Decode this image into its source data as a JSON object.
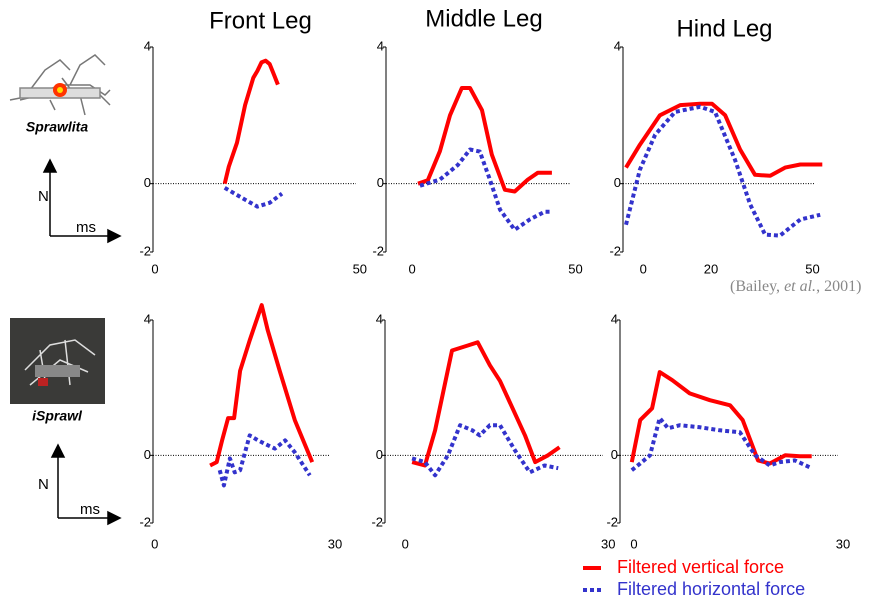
{
  "chart_data": [
    {
      "type": "line",
      "title": "Front Leg",
      "xlim": [
        -0.5,
        52
      ],
      "ylim": [
        -2,
        4
      ],
      "xticks": [
        0,
        50
      ],
      "yticks": [
        4,
        0,
        -2
      ],
      "hline": 0,
      "series": [
        {
          "name": "Filtered vertical force",
          "color": "#ff0000",
          "style": "solid",
          "x": [
            17,
            18,
            20,
            22,
            24,
            25,
            26,
            27,
            28,
            29,
            30
          ],
          "values": [
            0,
            0.5,
            1.2,
            2.3,
            3.1,
            3.3,
            3.55,
            3.6,
            3.5,
            3.2,
            2.9
          ]
        },
        {
          "name": "Filtered horizontal force",
          "color": "#3333cc",
          "style": "dotted",
          "x": [
            17,
            22,
            25,
            28,
            31
          ],
          "values": [
            -0.12,
            -0.47,
            -0.67,
            -0.56,
            -0.29
          ]
        }
      ]
    },
    {
      "type": "line",
      "title": "Middle Leg",
      "xlim": [
        -8,
        52
      ],
      "ylim": [
        -2,
        4
      ],
      "xticks": [
        0,
        50
      ],
      "yticks": [
        4,
        0,
        -2
      ],
      "hline": 0,
      "series": [
        {
          "name": "Filtered vertical force",
          "color": "#ff0000",
          "style": "solid",
          "x": [
            1.8,
            4.8,
            8.5,
            11.6,
            15.2,
            17.7,
            21.4,
            24.4,
            28.4,
            31.4,
            35.4,
            38.5,
            42.8
          ],
          "values": [
            0,
            0.1,
            0.95,
            2.0,
            2.8,
            2.8,
            2.15,
            0.85,
            -0.18,
            -0.23,
            0.12,
            0.32,
            0.32
          ]
        },
        {
          "name": "Filtered horizontal force",
          "color": "#3333cc",
          "style": "dotted",
          "x": [
            2.4,
            8.5,
            14,
            17.7,
            20.7,
            23.8,
            26.9,
            31.4,
            36,
            40.6,
            42.5
          ],
          "values": [
            -0.06,
            0.12,
            0.55,
            1.0,
            0.94,
            0.12,
            -0.76,
            -1.35,
            -1.05,
            -0.82,
            -0.82
          ]
        }
      ]
    },
    {
      "type": "line",
      "title": "Hind Leg",
      "xlim": [
        -6,
        54
      ],
      "ylim": [
        -2,
        4
      ],
      "xticks": [
        0,
        20,
        50
      ],
      "yticks": [
        4,
        0,
        -2
      ],
      "hline": 0,
      "series": [
        {
          "name": "Filtered vertical force",
          "color": "#ff0000",
          "style": "solid",
          "x": [
            -5.1,
            -1,
            4.9,
            10.9,
            16.8,
            20.3,
            24.2,
            28.6,
            33,
            37.5,
            41.9,
            46.4,
            52.9
          ],
          "values": [
            0.47,
            1.14,
            2.0,
            2.3,
            2.34,
            2.34,
            2.0,
            1.0,
            0.26,
            0.23,
            0.47,
            0.56,
            0.56
          ]
        },
        {
          "name": "Filtered horizontal force",
          "color": "#3333cc",
          "style": "dotted",
          "x": [
            -5.1,
            -1,
            3.5,
            9.4,
            16.8,
            21.2,
            27.1,
            31.6,
            36,
            40.4,
            46.4,
            52.3
          ],
          "values": [
            -1.2,
            0.41,
            1.43,
            2.1,
            2.25,
            2.1,
            0.7,
            -0.61,
            -1.49,
            -1.52,
            -1.05,
            -0.91
          ]
        }
      ]
    },
    {
      "type": "line",
      "xlim": [
        -0.3,
        31
      ],
      "ylim": [
        -2,
        4
      ],
      "xticks": [
        0,
        30
      ],
      "yticks": [
        4,
        0,
        -2
      ],
      "hline": 0,
      "series": [
        {
          "name": "Filtered vertical force",
          "color": "#ff0000",
          "style": "solid",
          "x": [
            9.2,
            10.3,
            11.2,
            12.2,
            13.2,
            14.2,
            15.8,
            17.8,
            18.8,
            20.8,
            23.3,
            26.2
          ],
          "values": [
            -0.3,
            -0.2,
            0.44,
            1.1,
            1.1,
            2.5,
            3.4,
            4.44,
            3.7,
            2.5,
            1.04,
            -0.2
          ]
        },
        {
          "name": "Filtered horizontal force",
          "color": "#3333cc",
          "style": "dotted",
          "x": [
            10.8,
            11.5,
            12.5,
            13.3,
            14.2,
            15.8,
            17.2,
            18.8,
            20,
            21.7,
            23.3,
            25.8
          ],
          "values": [
            -0.44,
            -0.89,
            -0.09,
            -0.5,
            -0.44,
            0.59,
            0.44,
            0.3,
            0.2,
            0.44,
            0.09,
            -0.59
          ]
        }
      ]
    },
    {
      "type": "line",
      "xlim": [
        -3,
        31
      ],
      "ylim": [
        -2,
        4
      ],
      "xticks": [
        0,
        30
      ],
      "yticks": [
        4,
        0,
        -2
      ],
      "hline": 0,
      "series": [
        {
          "name": "Filtered vertical force",
          "color": "#ff0000",
          "style": "solid",
          "x": [
            1,
            2.9,
            4.4,
            6.9,
            9.3,
            10.7,
            12.5,
            14,
            17.7,
            19.2,
            21.1,
            22.8
          ],
          "values": [
            -0.2,
            -0.3,
            0.74,
            3.1,
            3.25,
            3.34,
            2.66,
            2.2,
            0.59,
            -0.2,
            0,
            0.24
          ]
        },
        {
          "name": "Filtered horizontal force",
          "color": "#3333cc",
          "style": "dotted",
          "x": [
            1,
            2.9,
            4.4,
            6.3,
            8.1,
            9.9,
            11,
            12.5,
            14,
            16.2,
            18.4,
            20.6,
            22.6
          ],
          "values": [
            -0.09,
            -0.2,
            -0.59,
            0,
            0.89,
            0.74,
            0.59,
            0.89,
            0.89,
            0.15,
            -0.5,
            -0.3,
            -0.38
          ]
        }
      ]
    },
    {
      "type": "line",
      "xlim": [
        -2,
        31
      ],
      "ylim": [
        -2,
        4
      ],
      "xticks": [
        0,
        30
      ],
      "yticks": [
        4,
        0,
        -2
      ],
      "hline": 0,
      "series": [
        {
          "name": "Filtered vertical force",
          "color": "#ff0000",
          "style": "solid",
          "x": [
            -0.3,
            0.9,
            2.6,
            3.7,
            5.5,
            8,
            10.9,
            13.8,
            15.6,
            17.8,
            19.5,
            21.7,
            23.8,
            25.5
          ],
          "values": [
            -0.2,
            1.04,
            1.39,
            2.46,
            2.22,
            1.83,
            1.63,
            1.48,
            1.04,
            -0.15,
            -0.24,
            0,
            -0.03,
            -0.03
          ]
        },
        {
          "name": "Filtered horizontal force",
          "color": "#3333cc",
          "style": "dotted",
          "x": [
            -0.3,
            0.9,
            2.3,
            3.7,
            4.9,
            6.6,
            9.5,
            12.3,
            15.2,
            17.4,
            19.5,
            20.9,
            23.1,
            25.5
          ],
          "values": [
            -0.44,
            -0.24,
            0,
            1.1,
            0.8,
            0.89,
            0.83,
            0.74,
            0.68,
            0,
            -0.3,
            -0.2,
            -0.15,
            -0.38
          ]
        }
      ]
    }
  ],
  "rows": [
    {
      "name": "Sprawlita",
      "y_arrow": "N",
      "x_arrow": "ms"
    },
    {
      "name": "iSprawl",
      "y_arrow": "N",
      "x_arrow": "ms"
    }
  ],
  "citation": [
    "(Bailey, ",
    "et al.",
    ", 2001)"
  ]
}
